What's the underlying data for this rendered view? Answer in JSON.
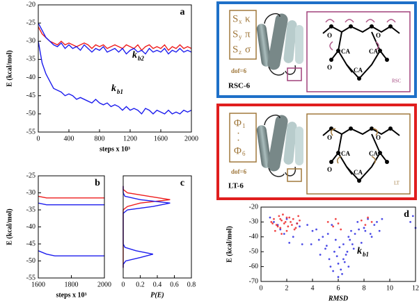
{
  "chart_data": [
    {
      "type": "line",
      "panel": "a",
      "x": [
        0,
        50,
        100,
        150,
        200,
        250,
        300,
        350,
        400,
        450,
        500,
        550,
        600,
        650,
        700,
        750,
        800,
        850,
        900,
        950,
        1000,
        1050,
        1100,
        1150,
        1200,
        1250,
        1300,
        1350,
        1400,
        1450,
        1500,
        1550,
        1600,
        1650,
        1700,
        1750,
        1800,
        1850,
        1900,
        1950,
        2000
      ],
      "series": [
        {
          "color": "#ee1c1c",
          "values": [
            -26,
            -28,
            -29,
            -30,
            -30.5,
            -31,
            -30,
            -31,
            -30.5,
            -31,
            -31.5,
            -31,
            -30.5,
            -31,
            -32,
            -31,
            -31.5,
            -31,
            -32,
            -31.5,
            -31,
            -31.5,
            -32,
            -31,
            -31.5,
            -32,
            -31,
            -32.5,
            -31.5,
            -31,
            -32,
            -31.5,
            -32,
            -31,
            -32.5,
            -31.5,
            -32,
            -31,
            -32,
            -31.5,
            -32
          ]
        },
        {
          "color": "#1c1cee",
          "values": [
            -25,
            -27,
            -29,
            -30,
            -31,
            -31.5,
            -30.5,
            -32,
            -31,
            -32,
            -31.5,
            -32.5,
            -31,
            -32,
            -33,
            -32,
            -32.5,
            -31.5,
            -33,
            -32.5,
            -32,
            -33,
            -32,
            -33.5,
            -32.5,
            -32,
            -33,
            -32.5,
            -33.5,
            -32,
            -33,
            -32.5,
            -33,
            -32,
            -33.5,
            -32.5,
            -33,
            -32,
            -33,
            -32.5,
            -33
          ]
        },
        {
          "color": "#1c1cee",
          "values": [
            -30,
            -36,
            -39,
            -41,
            -43,
            -43.5,
            -44,
            -45,
            -44.5,
            -45,
            -46,
            -45.5,
            -46,
            -46.5,
            -47,
            -46,
            -47,
            -47.5,
            -47,
            -48,
            -47.5,
            -48,
            -49,
            -48,
            -49,
            -48.5,
            -49,
            -50,
            -48.5,
            -49,
            -50,
            -49,
            -49.5,
            -50,
            -49,
            -50,
            -49.5,
            -50,
            -49,
            -49.5,
            -49
          ]
        }
      ],
      "xlim": [
        0,
        2000
      ],
      "xticks": [
        0,
        400,
        800,
        1200,
        1600,
        2000
      ],
      "ylim": [
        -55,
        -20
      ],
      "yticks": [
        -55,
        -50,
        -45,
        -40,
        -35,
        -30,
        -25,
        -20
      ],
      "x_label": "steps x 10³",
      "y_label": "E (kcal/mol)",
      "annotations": [
        {
          "text": "k",
          "subscript": "b2"
        },
        {
          "text": "k",
          "subscript": "b1"
        }
      ]
    },
    {
      "type": "line",
      "panel": "b",
      "x": [
        1600,
        1650,
        1700,
        1750,
        1800,
        1850,
        1900,
        1950,
        2000
      ],
      "series": [
        {
          "color": "#ee1c1c",
          "values": [
            -31,
            -31.5,
            -31.5,
            -31.5,
            -31.5,
            -31.5,
            -31.5,
            -31.5,
            -31.5
          ]
        },
        {
          "color": "#1c1cee",
          "values": [
            -33,
            -33.5,
            -33.5,
            -33.5,
            -33.5,
            -33.5,
            -33.5,
            -33.5,
            -33.5
          ]
        },
        {
          "color": "#1c1cee",
          "values": [
            -47,
            -48,
            -48.5,
            -48.5,
            -48.5,
            -48.5,
            -48.5,
            -48.5,
            -48.5
          ]
        }
      ],
      "xlim": [
        1600,
        2000
      ],
      "xticks": [
        1600,
        1800,
        2000
      ],
      "ylim": [
        -55,
        -25
      ],
      "yticks": [
        -55,
        -50,
        -45,
        -40,
        -35,
        -30,
        -25
      ],
      "x_label": "steps x 10³",
      "y_label": "E (kcal/mol)"
    },
    {
      "type": "distribution",
      "panel": "c",
      "energies": [
        -52,
        -51,
        -50,
        -49,
        -48,
        -47,
        -46,
        -45,
        -44,
        -43,
        -42,
        -41,
        -40,
        -39,
        -38,
        -37,
        -36,
        -35,
        -34,
        -33,
        -32,
        -31,
        -30,
        -29,
        -28
      ],
      "series": [
        {
          "color": "#ee1c1c",
          "values": [
            0,
            0,
            0,
            0,
            0,
            0,
            0,
            0,
            0,
            0,
            0,
            0,
            0,
            0,
            0,
            0,
            0,
            0,
            0.05,
            0.2,
            0.55,
            0.3,
            0.05,
            0,
            0
          ]
        },
        {
          "color": "#1c1cee",
          "values": [
            0,
            0,
            0.03,
            0.2,
            0.35,
            0.15,
            0.02,
            0,
            0,
            0,
            0,
            0,
            0,
            0,
            0,
            0,
            0,
            0.05,
            0.35,
            0.55,
            0.2,
            0.02,
            0,
            0,
            0
          ]
        }
      ],
      "xlim": [
        0,
        0.8
      ],
      "xticks": [
        0,
        0.2,
        0.4,
        0.6,
        0.8
      ],
      "ylim": [
        -55,
        -25
      ],
      "x_label": "P(E)"
    },
    {
      "type": "scatter",
      "panel": "d",
      "series": [
        {
          "color": "#2020e0",
          "x": [
            1.0,
            1.5,
            2.0,
            2.5,
            3.0,
            3.2,
            0.7,
            1.8,
            2.8,
            4.0,
            4.5,
            5.0,
            5.3,
            5.5,
            5.7,
            6.0,
            6.2,
            6.4,
            6.6,
            6.8,
            7.0,
            7.2,
            7.5,
            7.8,
            8.0,
            8.3,
            8.5,
            8.8,
            9.0,
            9.2,
            5.4,
            5.9,
            6.3,
            6.5,
            6.1,
            5.8,
            6.7,
            7.3,
            4.8,
            4.3,
            3.6,
            3.9,
            5.2,
            6.9,
            7.6,
            8.6,
            9.4,
            11.6,
            11.8,
            12.0,
            2.2,
            1.3,
            6.0,
            6.4,
            5.6,
            7.1,
            8.1,
            4.6,
            5.1,
            6.8
          ],
          "values": [
            -30,
            -35,
            -28,
            -40,
            -33,
            -45,
            -27,
            -38,
            -31,
            -36,
            -42,
            -48,
            -55,
            -32,
            -50,
            -58,
            -62,
            -45,
            -52,
            -40,
            -36,
            -48,
            -30,
            -44,
            -34,
            -28,
            -38,
            -32,
            -30,
            -36,
            -60,
            -53,
            -65,
            -57,
            -47,
            -42,
            -50,
            -38,
            -40,
            -35,
            -32,
            -45,
            -38,
            -42,
            -35,
            -40,
            -28,
            -30,
            -26,
            -34,
            -44,
            -32,
            -67,
            -55,
            -63,
            -45,
            -36,
            -52,
            -46,
            -60
          ]
        },
        {
          "color": "#ee1c1c",
          "x": [
            0.8,
            1.0,
            1.2,
            1.4,
            1.5,
            1.6,
            1.8,
            2.0,
            2.1,
            2.3,
            2.5,
            2.6,
            2.8,
            3.0,
            1.1,
            1.3,
            1.7,
            1.9,
            2.2,
            2.4,
            2.7,
            0.9,
            1.5,
            2.0,
            5.2,
            5.6,
            6.0,
            5.8,
            7.8,
            8.1,
            8.3,
            8.6,
            6.2,
            2.9,
            1.6
          ],
          "values": [
            -30,
            -28,
            -32,
            -26,
            -34,
            -29,
            -31,
            -27,
            -33,
            -30,
            -28,
            -35,
            -31,
            -29,
            -36,
            -33,
            -25,
            -30,
            -27,
            -32,
            -34,
            -31,
            -28,
            -36,
            -30,
            -33,
            -31,
            -28,
            -29,
            -32,
            -27,
            -30,
            -35,
            -26,
            -38
          ]
        }
      ],
      "xlim": [
        0,
        12
      ],
      "xticks": [
        0,
        2,
        4,
        6,
        8,
        10,
        12
      ],
      "ylim": [
        -70,
        -20
      ],
      "yticks": [
        -70,
        -60,
        -50,
        -40,
        -30,
        -20
      ],
      "x_label": "RMSD",
      "y_label": "E (kcal/mol)",
      "annotations": [
        {
          "text": "k",
          "subscript": "b1"
        }
      ]
    }
  ],
  "diagrams": [
    {
      "label": "RSC-6",
      "dof": "dof=6",
      "variables": [
        {
          "symbol": "S",
          "subscript": "x",
          "angle": "κ"
        },
        {
          "symbol": "S",
          "subscript": "y",
          "angle": "π"
        },
        {
          "symbol": "S",
          "subscript": "z",
          "angle": "σ"
        }
      ],
      "atoms": [
        "O",
        "O",
        "CA",
        "CA",
        "O",
        "CA"
      ],
      "inset": "RSC"
    },
    {
      "label": "LT-6",
      "dof": "dof=6",
      "variables": [
        {
          "symbol": "Φ",
          "subscript": "1"
        },
        {
          "symbol": "Φ",
          "subscript": "6"
        }
      ],
      "dots": "·",
      "atoms": [
        "O",
        "O",
        "CA",
        "CA",
        "O",
        "CA"
      ],
      "inset": "LT"
    }
  ]
}
